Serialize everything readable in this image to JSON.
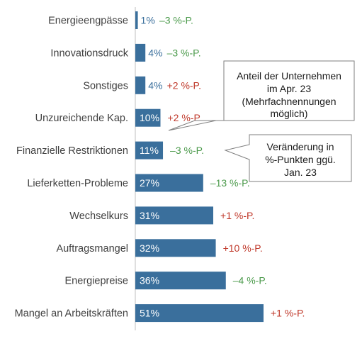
{
  "chart_data": {
    "type": "bar",
    "orientation": "horizontal",
    "categories": [
      "Energieengpässe",
      "Innovationsdruck",
      "Sonstiges",
      "Unzureichende Kap.",
      "Finanzielle Restriktionen",
      "Lieferketten-Probleme",
      "Wechselkurs",
      "Auftragsmangel",
      "Energiepreise",
      "Mangel an Arbeitskräften"
    ],
    "values": [
      1,
      4,
      4,
      10,
      11,
      27,
      31,
      32,
      36,
      51
    ],
    "value_labels": [
      "1%",
      "4%",
      "4%",
      "10%",
      "11%",
      "27%",
      "31%",
      "32%",
      "36%",
      "51%"
    ],
    "changes": [
      -3,
      -3,
      2,
      2,
      -3,
      -13,
      1,
      10,
      -4,
      1
    ],
    "change_labels": [
      "–3 %-P.",
      "–3 %-P.",
      "+2 %-P.",
      "+2 %-P.",
      "–3 %-P.",
      "–13 %-P.",
      "+1 %-P.",
      "+10 %-P.",
      "–4 %-P.",
      "+1 %-P."
    ],
    "xlim": [
      0,
      51
    ],
    "bar_color": "#3a6f9c",
    "negative_color": "#4b9a4b",
    "positive_color": "#c0392b",
    "label_color": "#404040",
    "callouts": [
      {
        "lines": [
          "Anteil der Unternehmen",
          "im Apr. 23",
          "(Mehrfachnennungen",
          "möglich)"
        ]
      },
      {
        "lines": [
          "Veränderung in",
          "%-Punkten ggü.",
          "Jan. 23"
        ]
      }
    ]
  }
}
